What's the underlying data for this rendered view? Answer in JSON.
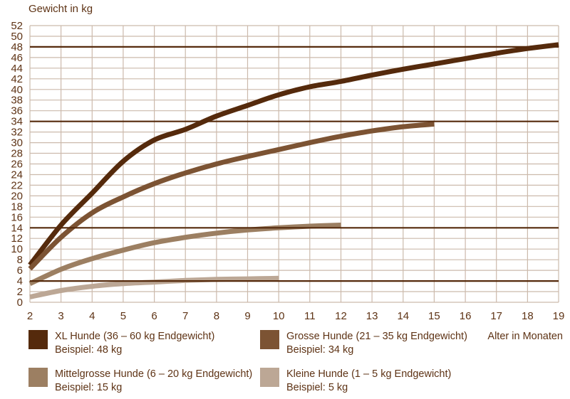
{
  "page": {
    "background": "#ffffff"
  },
  "chart_data": {
    "type": "line",
    "title": "Gewicht in kg",
    "xlabel": "Alter in Monaten",
    "ylabel": "Gewicht in kg",
    "xlim": [
      2,
      19
    ],
    "ylim": [
      0,
      52
    ],
    "x_ticks": [
      2,
      3,
      4,
      5,
      6,
      7,
      8,
      9,
      10,
      11,
      12,
      13,
      14,
      15,
      16,
      17,
      18,
      19
    ],
    "y_ticks": [
      0,
      2,
      4,
      6,
      8,
      10,
      12,
      14,
      16,
      18,
      20,
      22,
      24,
      26,
      28,
      30,
      32,
      34,
      36,
      38,
      40,
      42,
      44,
      46,
      48,
      50,
      52
    ],
    "grid": true,
    "grid_color": "#ccbaac",
    "text_color": "#5e3315",
    "reference_line_color": "#552a0c",
    "reference_lines": [
      48,
      34,
      14,
      4
    ],
    "legend_position": "bottom",
    "series": [
      {
        "name": "XL Hunde (36 – 60 kg Endgewicht)",
        "example": "Beispiel: 48 kg",
        "color": "#552a0c",
        "x": [
          2,
          3,
          4,
          5,
          6,
          7,
          8,
          9,
          10,
          11,
          12,
          13,
          14,
          15,
          16,
          17,
          18,
          19
        ],
        "y": [
          7,
          14.5,
          20.5,
          26.5,
          30.5,
          32.5,
          35,
          37,
          39,
          40.5,
          41.5,
          42.7,
          43.8,
          44.8,
          45.8,
          46.8,
          47.7,
          48.4
        ]
      },
      {
        "name": "Grosse Hunde (21 – 35 kg Endgewicht)",
        "example": "Beispiel: 34 kg",
        "color": "#7c5333",
        "x": [
          2,
          3,
          4,
          5,
          6,
          7,
          8,
          9,
          10,
          11,
          12,
          13,
          14,
          15
        ],
        "y": [
          6.3,
          12.2,
          16.8,
          19.8,
          22.3,
          24.3,
          26,
          27.4,
          28.7,
          30,
          31.2,
          32.2,
          33,
          33.5
        ]
      },
      {
        "name": "Mittelgrosse Hunde (6 – 20 kg Endgewicht)",
        "example": "Beispiel: 15 kg",
        "color": "#9c7f62",
        "x": [
          2,
          3,
          4,
          5,
          6,
          7,
          8,
          9,
          10,
          11,
          12
        ],
        "y": [
          3.5,
          6.2,
          8.2,
          9.8,
          11.2,
          12.2,
          13,
          13.6,
          14,
          14.3,
          14.5
        ]
      },
      {
        "name": "Kleine Hunde (1 – 5 kg Endgewicht)",
        "example": "Beispiel: 5 kg",
        "color": "#bca795",
        "x": [
          2,
          3,
          4,
          5,
          6,
          7,
          8,
          9,
          10
        ],
        "y": [
          1,
          2.2,
          3,
          3.5,
          3.8,
          4.1,
          4.3,
          4.4,
          4.5
        ]
      }
    ]
  }
}
